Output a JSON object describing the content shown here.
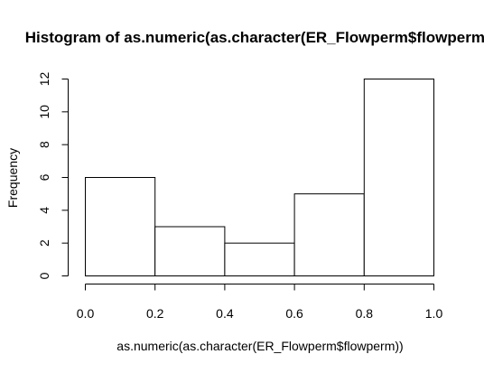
{
  "chart_data": {
    "type": "bar",
    "subtype": "histogram",
    "title": "Histogram of as.numeric(as.character(ER_Flowperm$flowperm))",
    "xlabel": "as.numeric(as.character(ER_Flowperm$flowperm))",
    "ylabel": "Frequency",
    "bins": [
      {
        "from": 0.0,
        "to": 0.2,
        "count": 6
      },
      {
        "from": 0.2,
        "to": 0.4,
        "count": 3
      },
      {
        "from": 0.4,
        "to": 0.6,
        "count": 2
      },
      {
        "from": 0.6,
        "to": 0.8,
        "count": 5
      },
      {
        "from": 0.8,
        "to": 1.0,
        "count": 12
      }
    ],
    "xlim": [
      0,
      1
    ],
    "ylim": [
      0,
      12
    ],
    "xticks": [
      "0.0",
      "0.2",
      "0.4",
      "0.6",
      "0.8",
      "1.0"
    ],
    "yticks": [
      "0",
      "2",
      "4",
      "6",
      "8",
      "10",
      "12"
    ],
    "grid": false,
    "bar_fill": "#ffffff",
    "bar_stroke": "#000000"
  }
}
